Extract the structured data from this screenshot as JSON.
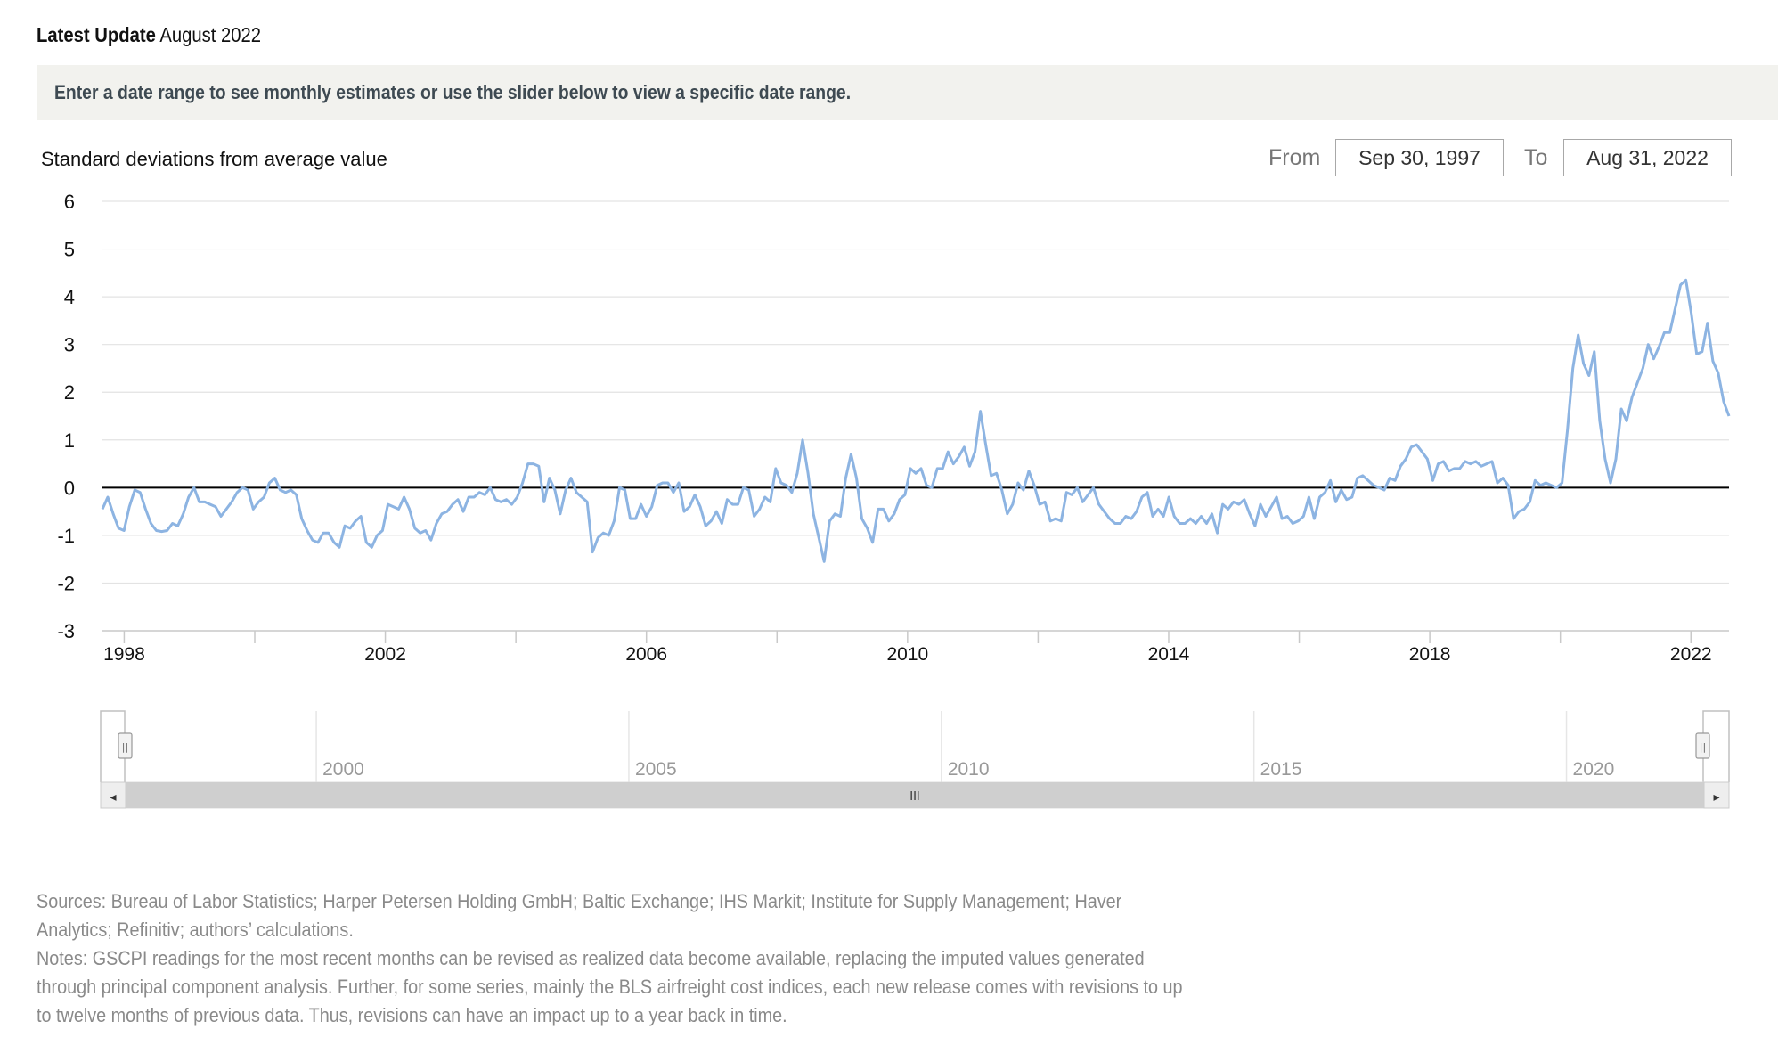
{
  "header": {
    "update_label": "Latest Update",
    "update_value": "August 2022"
  },
  "banner": {
    "text": "Enter a date range to see monthly estimates or use the slider below to view a specific date range."
  },
  "range": {
    "from_label": "From",
    "from_value": "Sep 30, 1997",
    "to_label": "To",
    "to_value": "Aug 31, 2022"
  },
  "colors": {
    "series": "#8db4e2",
    "grid": "#e3e3e3",
    "zero_line": "#000000",
    "navigator_bar": "#cfcfcf"
  },
  "chart_data": {
    "type": "line",
    "title": "",
    "ylabel": "Standard deviations from average value",
    "xlabel": "",
    "ylim": [
      -3,
      6
    ],
    "yticks": [
      "6",
      "5",
      "4",
      "3",
      "2",
      "1",
      "0",
      "-1",
      "-2",
      "-3"
    ],
    "xticks": [
      "1998",
      "2002",
      "2006",
      "2010",
      "2014",
      "2018",
      "2022"
    ],
    "grid": true,
    "legend": "none",
    "x_start": "1997-09",
    "x_end": "2022-08",
    "series": [
      {
        "name": "",
        "values": [
          -0.45,
          -0.2,
          -0.55,
          -0.85,
          -0.9,
          -0.4,
          -0.05,
          -0.1,
          -0.45,
          -0.75,
          -0.9,
          -0.92,
          -0.9,
          -0.75,
          -0.8,
          -0.55,
          -0.2,
          0.0,
          -0.3,
          -0.3,
          -0.35,
          -0.4,
          -0.6,
          -0.45,
          -0.3,
          -0.1,
          0.0,
          -0.05,
          -0.45,
          -0.3,
          -0.2,
          0.1,
          0.2,
          -0.05,
          -0.1,
          -0.05,
          -0.15,
          -0.65,
          -0.9,
          -1.1,
          -1.15,
          -0.95,
          -0.95,
          -1.15,
          -1.25,
          -0.8,
          -0.85,
          -0.7,
          -0.6,
          -1.15,
          -1.25,
          -1.0,
          -0.9,
          -0.35,
          -0.4,
          -0.45,
          -0.2,
          -0.45,
          -0.85,
          -0.95,
          -0.9,
          -1.1,
          -0.75,
          -0.55,
          -0.5,
          -0.35,
          -0.25,
          -0.5,
          -0.2,
          -0.2,
          -0.1,
          -0.15,
          0.0,
          -0.25,
          -0.3,
          -0.25,
          -0.35,
          -0.2,
          0.1,
          0.5,
          0.5,
          0.45,
          -0.3,
          0.2,
          -0.05,
          -0.55,
          -0.05,
          0.2,
          -0.1,
          -0.2,
          -0.3,
          -1.35,
          -1.05,
          -0.95,
          -1.0,
          -0.7,
          0.0,
          -0.05,
          -0.65,
          -0.65,
          -0.35,
          -0.6,
          -0.4,
          0.05,
          0.1,
          0.1,
          -0.1,
          0.1,
          -0.5,
          -0.4,
          -0.15,
          -0.4,
          -0.8,
          -0.7,
          -0.5,
          -0.75,
          -0.25,
          -0.35,
          -0.35,
          0.0,
          -0.05,
          -0.6,
          -0.45,
          -0.2,
          -0.3,
          0.4,
          0.1,
          0.05,
          -0.1,
          0.3,
          1.0,
          0.3,
          -0.55,
          -1.05,
          -1.55,
          -0.7,
          -0.55,
          -0.6,
          0.2,
          0.7,
          0.2,
          -0.65,
          -0.85,
          -1.15,
          -0.45,
          -0.45,
          -0.7,
          -0.55,
          -0.25,
          -0.15,
          0.4,
          0.3,
          0.4,
          0.05,
          0.0,
          0.4,
          0.4,
          0.75,
          0.5,
          0.65,
          0.85,
          0.45,
          0.75,
          1.6,
          0.9,
          0.25,
          0.3,
          -0.05,
          -0.55,
          -0.35,
          0.1,
          -0.05,
          0.35,
          0.05,
          -0.35,
          -0.3,
          -0.7,
          -0.65,
          -0.7,
          -0.1,
          -0.15,
          0.0,
          -0.3,
          -0.15,
          0.0,
          -0.35,
          -0.5,
          -0.65,
          -0.75,
          -0.75,
          -0.6,
          -0.65,
          -0.5,
          -0.2,
          -0.1,
          -0.6,
          -0.45,
          -0.6,
          -0.2,
          -0.6,
          -0.75,
          -0.75,
          -0.65,
          -0.75,
          -0.6,
          -0.75,
          -0.55,
          -0.95,
          -0.35,
          -0.45,
          -0.3,
          -0.35,
          -0.25,
          -0.55,
          -0.8,
          -0.35,
          -0.6,
          -0.4,
          -0.2,
          -0.65,
          -0.6,
          -0.75,
          -0.7,
          -0.6,
          -0.2,
          -0.65,
          -0.2,
          -0.1,
          0.15,
          -0.3,
          -0.05,
          -0.25,
          -0.2,
          0.2,
          0.25,
          0.15,
          0.05,
          0.0,
          -0.05,
          0.2,
          0.15,
          0.45,
          0.6,
          0.85,
          0.9,
          0.75,
          0.6,
          0.15,
          0.5,
          0.55,
          0.35,
          0.4,
          0.4,
          0.55,
          0.5,
          0.55,
          0.45,
          0.5,
          0.55,
          0.1,
          0.2,
          0.05,
          -0.65,
          -0.5,
          -0.45,
          -0.3,
          0.15,
          0.05,
          0.1,
          0.05,
          0.0,
          0.1,
          1.2,
          2.5,
          3.2,
          2.6,
          2.35,
          2.85,
          1.4,
          0.6,
          0.1,
          0.6,
          1.65,
          1.4,
          1.9,
          2.2,
          2.5,
          3.0,
          2.7,
          2.95,
          3.25,
          3.25,
          3.75,
          4.25,
          4.35,
          3.65,
          2.8,
          2.85,
          3.45,
          2.65,
          2.4,
          1.8,
          1.5
        ]
      }
    ]
  },
  "navigator": {
    "labels": [
      "2000",
      "2005",
      "2010",
      "2015",
      "2020"
    ],
    "scroll_grip": "III",
    "left_arrow": "◂",
    "right_arrow": "▸",
    "handle_glyph": "||"
  },
  "footer": {
    "sources": "Sources: Bureau of Labor Statistics; Harper Petersen Holding GmbH; Baltic Exchange; IHS Markit; Institute for Supply Management; Haver Analytics; Refinitiv; authors’ calculations.",
    "notes": "Notes: GSCPI readings for the most recent months can be revised as realized data become available, replacing the imputed values generated through principal component analysis. Further, for some series, mainly the BLS airfreight cost indices, each new release comes with revisions to up to twelve months of previous data. Thus, revisions can have an impact up to a year back in time."
  }
}
